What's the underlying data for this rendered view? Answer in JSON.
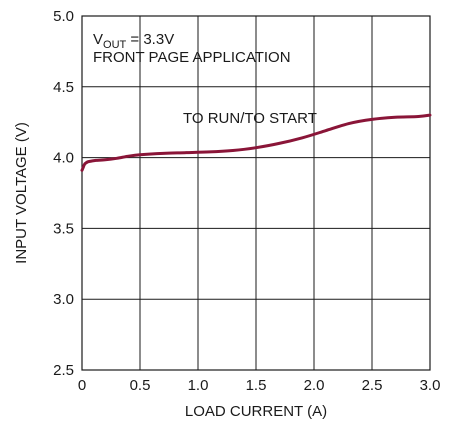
{
  "chart_data": {
    "type": "line",
    "xlabel": "LOAD CURRENT (A)",
    "ylabel": "INPUT VOLTAGE (V)",
    "xlim": [
      0,
      3.0
    ],
    "ylim": [
      2.5,
      5.0
    ],
    "x_ticks": [
      0,
      0.5,
      1.0,
      1.5,
      2.0,
      2.5,
      3.0
    ],
    "x_tick_labels": [
      "0",
      "0.5",
      "1.0",
      "1.5",
      "2.0",
      "2.5",
      "3.0"
    ],
    "y_ticks": [
      2.5,
      3.0,
      3.5,
      4.0,
      4.5,
      5.0
    ],
    "y_tick_labels": [
      "2.5",
      "3.0",
      "3.5",
      "4.0",
      "4.5",
      "5.0"
    ],
    "grid": true,
    "color": "#8a1538",
    "annotations": {
      "vout_symbol": "V",
      "vout_subscript": "OUT",
      "vout_value": " = 3.3V",
      "application": "FRONT PAGE APPLICATION",
      "curve_label": "TO RUN/TO START"
    },
    "series": [
      {
        "x": [
          0.0,
          0.01,
          0.02,
          0.03,
          0.05,
          0.08,
          0.12,
          0.2,
          0.3,
          0.4,
          0.5,
          0.7,
          0.9,
          1.1,
          1.3,
          1.5,
          1.7,
          1.9,
          2.1,
          2.3,
          2.5,
          2.7,
          2.9,
          3.0
        ],
        "y": [
          3.91,
          3.93,
          3.95,
          3.96,
          3.97,
          3.975,
          3.98,
          3.985,
          3.995,
          4.01,
          4.02,
          4.03,
          4.035,
          4.04,
          4.05,
          4.07,
          4.1,
          4.14,
          4.19,
          4.24,
          4.27,
          4.285,
          4.29,
          4.3
        ]
      }
    ]
  }
}
